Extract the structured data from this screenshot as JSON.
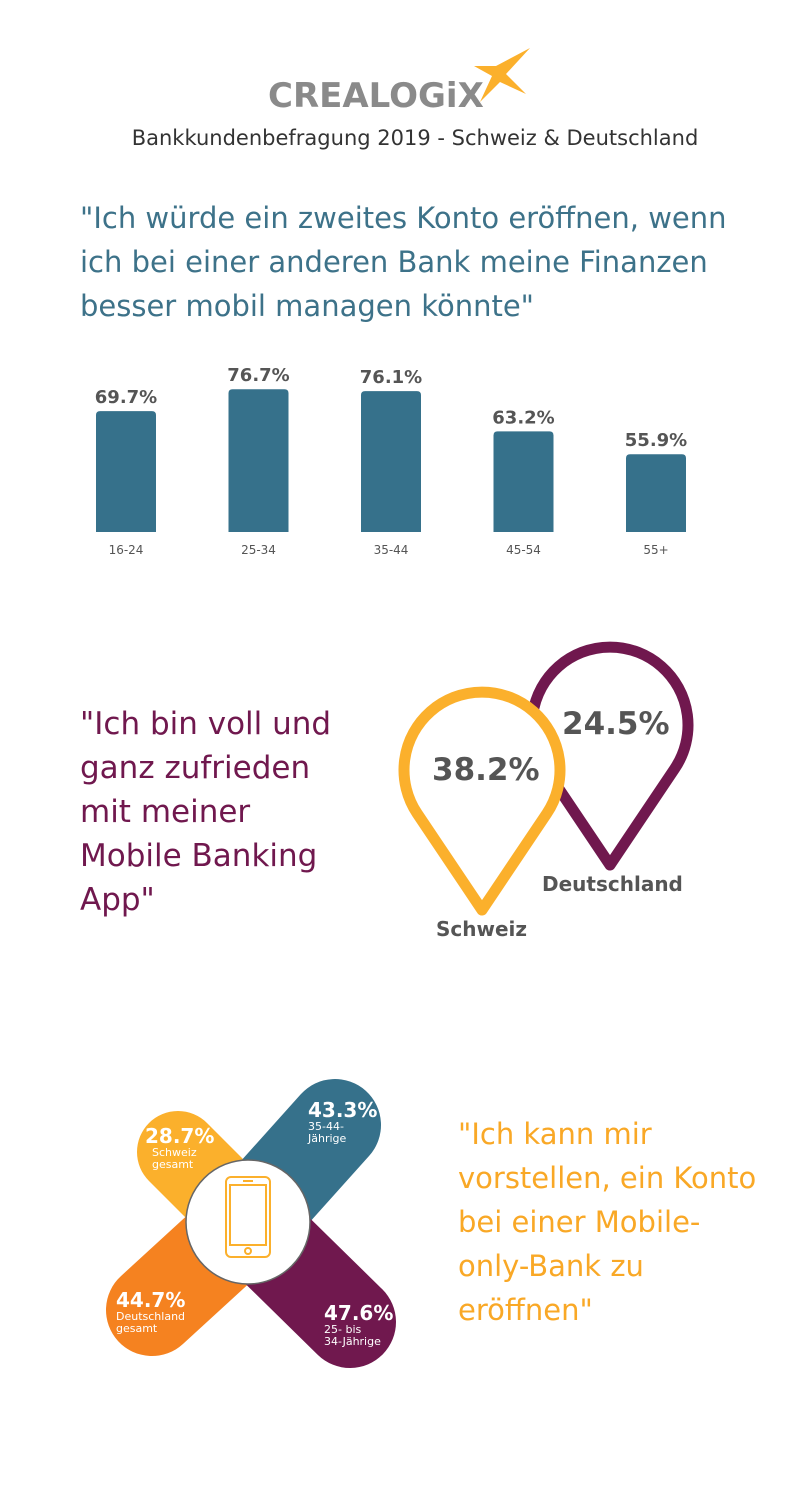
{
  "header": {
    "logo_text": "CREALOGiX",
    "subtitle": "Bankkundenbefragung 2019 - Schweiz & Deutschland"
  },
  "section1": {
    "quote": "\"Ich würde ein zweites Konto eröffnen, wenn ich bei einer anderen Bank meine Finanzen besser mobil managen könnte\""
  },
  "section2": {
    "quote": "\"Ich bin voll und ganz zufrieden mit meiner Mobile Banking App\"",
    "schweiz_value": "38.2%",
    "schweiz_label": "Schweiz",
    "deutschland_value": "24.5%",
    "deutschland_label": "Deutschland"
  },
  "section3": {
    "quote": "\"Ich kann mir vorstellen, ein Konto bei einer Mobile-only-Bank zu eröffnen\"",
    "items": [
      {
        "value": "28.7%",
        "label1": "Schweiz",
        "label2": "gesamt"
      },
      {
        "value": "43.3%",
        "label1": "35-44-",
        "label2": "Jährige"
      },
      {
        "value": "44.7%",
        "label1": "Deutschland",
        "label2": "gesamt"
      },
      {
        "value": "47.6%",
        "label1": "25- bis",
        "label2": "34-Jährige"
      }
    ]
  },
  "colors": {
    "teal": "#36718b",
    "purple": "#70184e",
    "yellow": "#fbb02c",
    "orange": "#f58220",
    "logo_gray": "#8a8a8a"
  },
  "chart_data": [
    {
      "type": "bar",
      "categories": [
        "16-24",
        "25-34",
        "35-44",
        "45-54",
        "55+"
      ],
      "values": [
        69.7,
        76.7,
        76.1,
        63.2,
        55.9
      ],
      "value_labels": [
        "69.7%",
        "76.7%",
        "76.1%",
        "63.2%",
        "55.9%"
      ],
      "unit": "%",
      "grid": false
    },
    {
      "type": "pin",
      "series": [
        {
          "name": "Schweiz",
          "value": 38.2
        },
        {
          "name": "Deutschland",
          "value": 24.5
        }
      ]
    },
    {
      "type": "cross",
      "series": [
        {
          "name": "Schweiz gesamt",
          "value": 28.7
        },
        {
          "name": "35-44-Jährige",
          "value": 43.3
        },
        {
          "name": "Deutschland gesamt",
          "value": 44.7
        },
        {
          "name": "25- bis 34-Jährige",
          "value": 47.6
        }
      ]
    }
  ]
}
